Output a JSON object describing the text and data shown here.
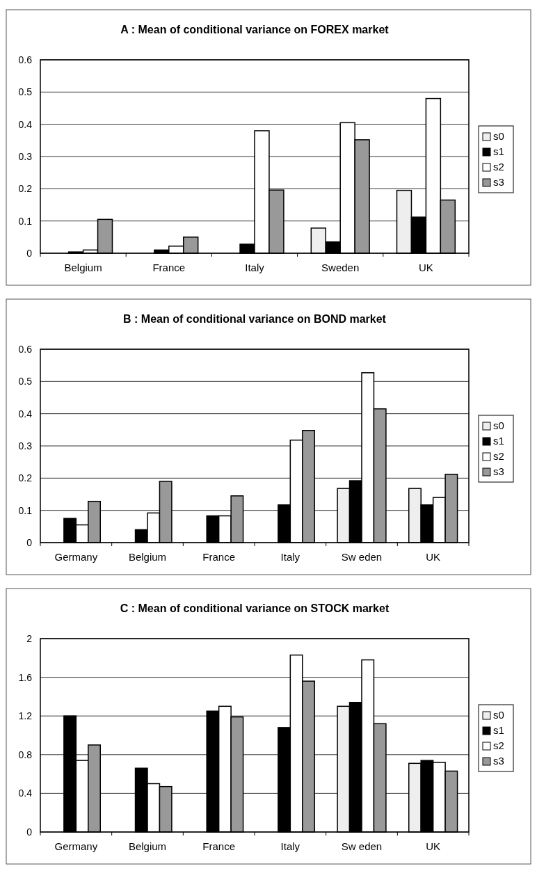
{
  "chart_data": [
    {
      "type": "bar",
      "title": "A :  Mean of conditional variance on FOREX market",
      "categories": [
        "Belgium",
        "France",
        "Italy",
        "Sweden",
        "UK"
      ],
      "series": [
        {
          "name": "s0",
          "color": "#eeeeee",
          "values": [
            0,
            0,
            0,
            0.078,
            0.195
          ]
        },
        {
          "name": "s1",
          "color": "#000000",
          "values": [
            0.004,
            0.01,
            0.028,
            0.035,
            0.112
          ]
        },
        {
          "name": "s2",
          "color": "#ffffff",
          "values": [
            0.01,
            0.022,
            0.38,
            0.405,
            0.48
          ]
        },
        {
          "name": "s3",
          "color": "#999999",
          "values": [
            0.105,
            0.05,
            0.196,
            0.352,
            0.165
          ]
        }
      ],
      "ylim": [
        0,
        0.6
      ],
      "yticks": [
        0,
        0.1,
        0.2,
        0.3,
        0.4,
        0.5,
        0.6
      ],
      "grid": "y",
      "legend": "right"
    },
    {
      "type": "bar",
      "title": "B :  Mean of conditional variance on BOND market",
      "categories": [
        "Germany",
        "Belgium",
        "France",
        "Italy",
        "Sw eden",
        "UK"
      ],
      "series": [
        {
          "name": "s0",
          "color": "#eeeeee",
          "values": [
            0,
            0,
            0,
            0,
            0.168,
            0.168
          ]
        },
        {
          "name": "s1",
          "color": "#000000",
          "values": [
            0.075,
            0.04,
            0.083,
            0.117,
            0.192,
            0.117
          ]
        },
        {
          "name": "s2",
          "color": "#ffffff",
          "values": [
            0.055,
            0.092,
            0.083,
            0.318,
            0.527,
            0.14
          ]
        },
        {
          "name": "s3",
          "color": "#999999",
          "values": [
            0.128,
            0.19,
            0.145,
            0.348,
            0.415,
            0.212
          ]
        }
      ],
      "ylim": [
        0,
        0.6
      ],
      "yticks": [
        0,
        0.1,
        0.2,
        0.3,
        0.4,
        0.5,
        0.6
      ],
      "grid": "y",
      "legend": "right"
    },
    {
      "type": "bar",
      "title": "C :  Mean of conditional variance on STOCK market",
      "categories": [
        "Germany",
        "Belgium",
        "France",
        "Italy",
        "Sw eden",
        "UK"
      ],
      "series": [
        {
          "name": "s0",
          "color": "#eeeeee",
          "values": [
            0,
            0,
            0,
            0,
            1.3,
            0.71
          ]
        },
        {
          "name": "s1",
          "color": "#000000",
          "values": [
            1.2,
            0.66,
            1.25,
            1.08,
            1.34,
            0.74
          ]
        },
        {
          "name": "s2",
          "color": "#ffffff",
          "values": [
            0.74,
            0.5,
            1.3,
            1.83,
            1.78,
            0.72
          ]
        },
        {
          "name": "s3",
          "color": "#999999",
          "values": [
            0.9,
            0.47,
            1.19,
            1.56,
            1.12,
            0.63
          ]
        }
      ],
      "ylim": [
        0,
        2
      ],
      "yticks": [
        0,
        0.4,
        0.8,
        1.2,
        1.6,
        2
      ],
      "grid": "y",
      "legend": "right"
    }
  ]
}
